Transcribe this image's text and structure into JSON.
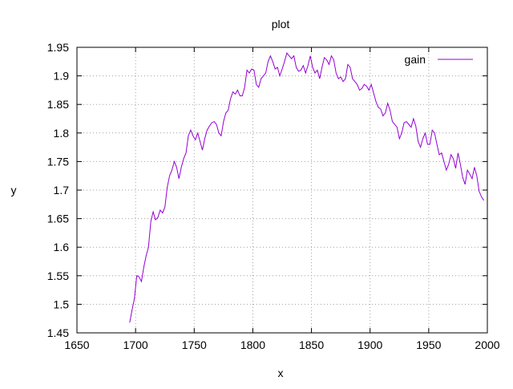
{
  "chart_data": {
    "type": "line",
    "title": "plot",
    "xlabel": "x",
    "ylabel": "y",
    "xlim": [
      1650,
      2000
    ],
    "ylim": [
      1.45,
      1.95
    ],
    "x_ticks": [
      1650,
      1700,
      1750,
      1800,
      1850,
      1900,
      1950,
      2000
    ],
    "y_ticks": [
      1.45,
      1.5,
      1.55,
      1.6,
      1.65,
      1.7,
      1.75,
      1.8,
      1.85,
      1.9,
      1.95
    ],
    "x_tick_labels": [
      "1650",
      "1700",
      "1750",
      "1800",
      "1850",
      "1900",
      "1950",
      "2000"
    ],
    "y_tick_labels": [
      "1.45",
      "1.5",
      "1.55",
      "1.6",
      "1.65",
      "1.7",
      "1.75",
      "1.8",
      "1.85",
      "1.9",
      "1.95"
    ],
    "grid": true,
    "legend_position": "top-right",
    "series": [
      {
        "name": "gain",
        "color": "#9400d3",
        "x": [
          1695,
          1697,
          1699,
          1701,
          1703,
          1705,
          1707,
          1709,
          1711,
          1713,
          1715,
          1717,
          1719,
          1721,
          1723,
          1725,
          1727,
          1729,
          1731,
          1733,
          1735,
          1737,
          1739,
          1741,
          1743,
          1745,
          1747,
          1749,
          1751,
          1753,
          1755,
          1757,
          1759,
          1761,
          1763,
          1765,
          1767,
          1769,
          1771,
          1773,
          1775,
          1777,
          1779,
          1781,
          1783,
          1785,
          1787,
          1789,
          1791,
          1793,
          1795,
          1797,
          1799,
          1801,
          1803,
          1805,
          1807,
          1809,
          1811,
          1813,
          1815,
          1817,
          1819,
          1821,
          1823,
          1825,
          1827,
          1829,
          1831,
          1833,
          1835,
          1837,
          1839,
          1841,
          1843,
          1845,
          1847,
          1849,
          1851,
          1853,
          1855,
          1857,
          1859,
          1861,
          1863,
          1865,
          1867,
          1869,
          1871,
          1873,
          1875,
          1877,
          1879,
          1881,
          1883,
          1885,
          1887,
          1889,
          1891,
          1893,
          1895,
          1897,
          1899,
          1901,
          1903,
          1905,
          1907,
          1909,
          1911,
          1913,
          1915,
          1917,
          1919,
          1921,
          1923,
          1925,
          1927,
          1929,
          1931,
          1933,
          1935,
          1937,
          1939,
          1941,
          1943,
          1945,
          1947,
          1949,
          1951,
          1953,
          1955,
          1957,
          1959,
          1961,
          1963,
          1965,
          1967,
          1969,
          1971,
          1973,
          1975,
          1977,
          1979,
          1981,
          1983,
          1985,
          1987,
          1989,
          1991,
          1993,
          1995,
          1997
        ],
        "y": [
          1.468,
          1.49,
          1.51,
          1.55,
          1.548,
          1.54,
          1.565,
          1.585,
          1.6,
          1.645,
          1.662,
          1.648,
          1.652,
          1.665,
          1.66,
          1.67,
          1.705,
          1.725,
          1.735,
          1.75,
          1.74,
          1.72,
          1.74,
          1.755,
          1.765,
          1.795,
          1.805,
          1.795,
          1.788,
          1.8,
          1.785,
          1.77,
          1.79,
          1.805,
          1.812,
          1.818,
          1.82,
          1.815,
          1.8,
          1.795,
          1.82,
          1.835,
          1.84,
          1.86,
          1.872,
          1.868,
          1.875,
          1.865,
          1.865,
          1.88,
          1.91,
          1.905,
          1.912,
          1.91,
          1.885,
          1.88,
          1.895,
          1.9,
          1.905,
          1.925,
          1.935,
          1.925,
          1.912,
          1.915,
          1.9,
          1.912,
          1.925,
          1.94,
          1.935,
          1.93,
          1.935,
          1.915,
          1.908,
          1.91,
          1.918,
          1.905,
          1.918,
          1.935,
          1.915,
          1.905,
          1.91,
          1.895,
          1.915,
          1.932,
          1.928,
          1.92,
          1.935,
          1.928,
          1.905,
          1.895,
          1.898,
          1.89,
          1.895,
          1.92,
          1.915,
          1.895,
          1.89,
          1.885,
          1.875,
          1.878,
          1.885,
          1.882,
          1.875,
          1.885,
          1.87,
          1.855,
          1.845,
          1.842,
          1.83,
          1.835,
          1.852,
          1.84,
          1.82,
          1.815,
          1.81,
          1.79,
          1.8,
          1.818,
          1.82,
          1.815,
          1.81,
          1.825,
          1.812,
          1.785,
          1.775,
          1.79,
          1.8,
          1.78,
          1.78,
          1.805,
          1.8,
          1.78,
          1.762,
          1.765,
          1.75,
          1.735,
          1.745,
          1.762,
          1.755,
          1.738,
          1.765,
          1.745,
          1.722,
          1.71,
          1.735,
          1.728,
          1.72,
          1.74,
          1.725,
          1.698,
          1.688,
          1.682
        ]
      }
    ]
  }
}
